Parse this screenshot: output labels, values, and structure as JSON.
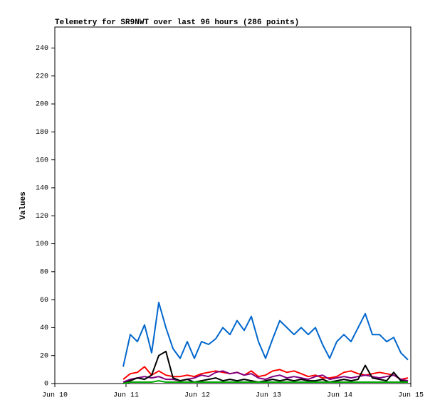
{
  "chart_data": {
    "type": "line",
    "title": "Telemetry for SR9NWT over last 96 hours (286 points)",
    "y_label": "Values",
    "xlim": [
      0,
      5
    ],
    "xticks": [
      {
        "value": 0,
        "label": "Jun 10"
      },
      {
        "value": 1,
        "label": "Jun 11"
      },
      {
        "value": 2,
        "label": "Jun 12"
      },
      {
        "value": 3,
        "label": "Jun 13"
      },
      {
        "value": 4,
        "label": "Jun 14"
      },
      {
        "value": 5,
        "label": "Jun 15"
      }
    ],
    "ylim": [
      0,
      255
    ],
    "yticks": [
      0,
      20,
      40,
      60,
      80,
      100,
      120,
      140,
      160,
      180,
      200,
      220,
      240
    ],
    "x": [
      0.96,
      1.06,
      1.16,
      1.26,
      1.36,
      1.46,
      1.56,
      1.66,
      1.76,
      1.86,
      1.96,
      2.06,
      2.16,
      2.26,
      2.36,
      2.46,
      2.56,
      2.66,
      2.76,
      2.86,
      2.96,
      3.06,
      3.16,
      3.26,
      3.36,
      3.46,
      3.56,
      3.66,
      3.76,
      3.86,
      3.96,
      4.06,
      4.16,
      4.26,
      4.36,
      4.46,
      4.56,
      4.66,
      4.76,
      4.86,
      4.96
    ],
    "series": [
      {
        "color": "#0066cc",
        "values": [
          12,
          35,
          30,
          42,
          22,
          58,
          40,
          25,
          18,
          30,
          18,
          30,
          28,
          32,
          40,
          35,
          45,
          38,
          48,
          30,
          18,
          32,
          45,
          40,
          35,
          40,
          35,
          40,
          28,
          18,
          30,
          35,
          30,
          40,
          50,
          35,
          35,
          30,
          33,
          22,
          17
        ]
      },
      {
        "color": "#ff0000",
        "values": [
          3,
          7,
          8,
          12,
          6,
          9,
          6,
          5,
          5,
          6,
          5,
          7,
          8,
          9,
          8,
          7,
          8,
          6,
          9,
          5,
          6,
          9,
          10,
          8,
          9,
          7,
          5,
          6,
          4,
          4,
          5,
          8,
          9,
          7,
          6,
          7,
          8,
          7,
          6,
          3,
          4
        ]
      },
      {
        "color": "#800080",
        "values": [
          1,
          3,
          4,
          5,
          4,
          5,
          3,
          3,
          2,
          3,
          4,
          6,
          5,
          8,
          9,
          7,
          8,
          6,
          7,
          4,
          3,
          5,
          6,
          4,
          5,
          4,
          3,
          5,
          6,
          3,
          4,
          5,
          4,
          5,
          6,
          5,
          4,
          5,
          6,
          3,
          2
        ]
      },
      {
        "color": "#000000",
        "values": [
          0,
          2,
          4,
          3,
          6,
          20,
          23,
          4,
          2,
          3,
          1,
          2,
          3,
          4,
          2,
          3,
          2,
          3,
          2,
          1,
          2,
          3,
          2,
          3,
          2,
          3,
          2,
          2,
          3,
          1,
          2,
          3,
          2,
          3,
          13,
          4,
          3,
          2,
          8,
          2,
          1
        ]
      },
      {
        "color": "#00aa00",
        "values": [
          0,
          1,
          1,
          1,
          1,
          2,
          1,
          1,
          1,
          1,
          1,
          1,
          1,
          1,
          1,
          1,
          1,
          1,
          1,
          1,
          1,
          1,
          1,
          1,
          1,
          1,
          1,
          1,
          1,
          1,
          1,
          1,
          1,
          1,
          1,
          1,
          1,
          1,
          1,
          1,
          1
        ]
      }
    ]
  }
}
